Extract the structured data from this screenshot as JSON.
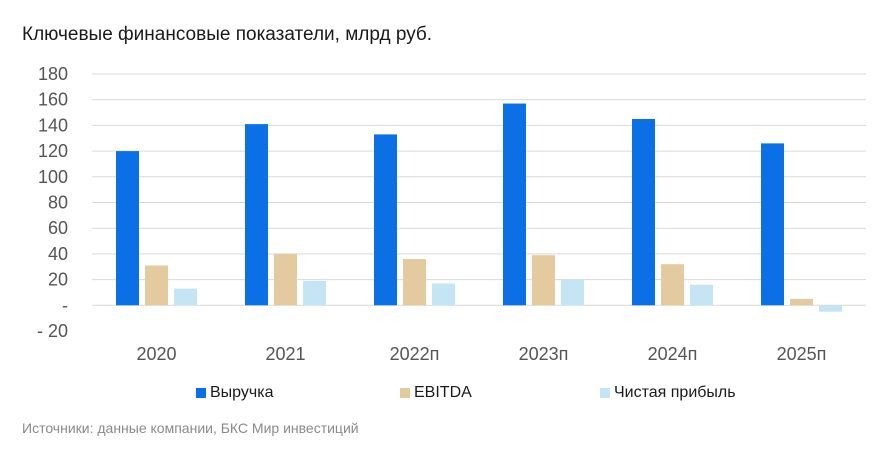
{
  "title": "Ключевые финансовые показатели, млрд руб.",
  "source": "Источники: данные компании, БКС Мир инвестиций",
  "colors": {
    "revenue": "#0b6fe6",
    "ebitda": "#e3cb9f",
    "net_income": "#c5e4f4",
    "grid": "#d9d9d9",
    "axis_text": "#555555"
  },
  "chart_data": {
    "type": "bar",
    "title": "Ключевые финансовые показатели, млрд руб.",
    "categories": [
      "2020",
      "2021",
      "2022п",
      "2023п",
      "2024п",
      "2025п"
    ],
    "series": [
      {
        "name": "Выручка",
        "values": [
          120,
          141,
          133,
          157,
          145,
          126
        ]
      },
      {
        "name": "EBITDA",
        "values": [
          31,
          40,
          36,
          39,
          32,
          5
        ]
      },
      {
        "name": "Чистая прибыль",
        "values": [
          13,
          19,
          17,
          20,
          16,
          -5
        ]
      }
    ],
    "ylim": [
      -20,
      180
    ],
    "yticks": [
      {
        "value": 180,
        "label": "180"
      },
      {
        "value": 160,
        "label": "160"
      },
      {
        "value": 140,
        "label": "140"
      },
      {
        "value": 120,
        "label": "120"
      },
      {
        "value": 100,
        "label": "100"
      },
      {
        "value": 80,
        "label": "80"
      },
      {
        "value": 60,
        "label": "60"
      },
      {
        "value": 40,
        "label": "40"
      },
      {
        "value": 20,
        "label": "20"
      },
      {
        "value": 0,
        "label": "-"
      },
      {
        "value": -20,
        "label": "- 20"
      }
    ],
    "grid": true,
    "legend_position": "bottom"
  }
}
